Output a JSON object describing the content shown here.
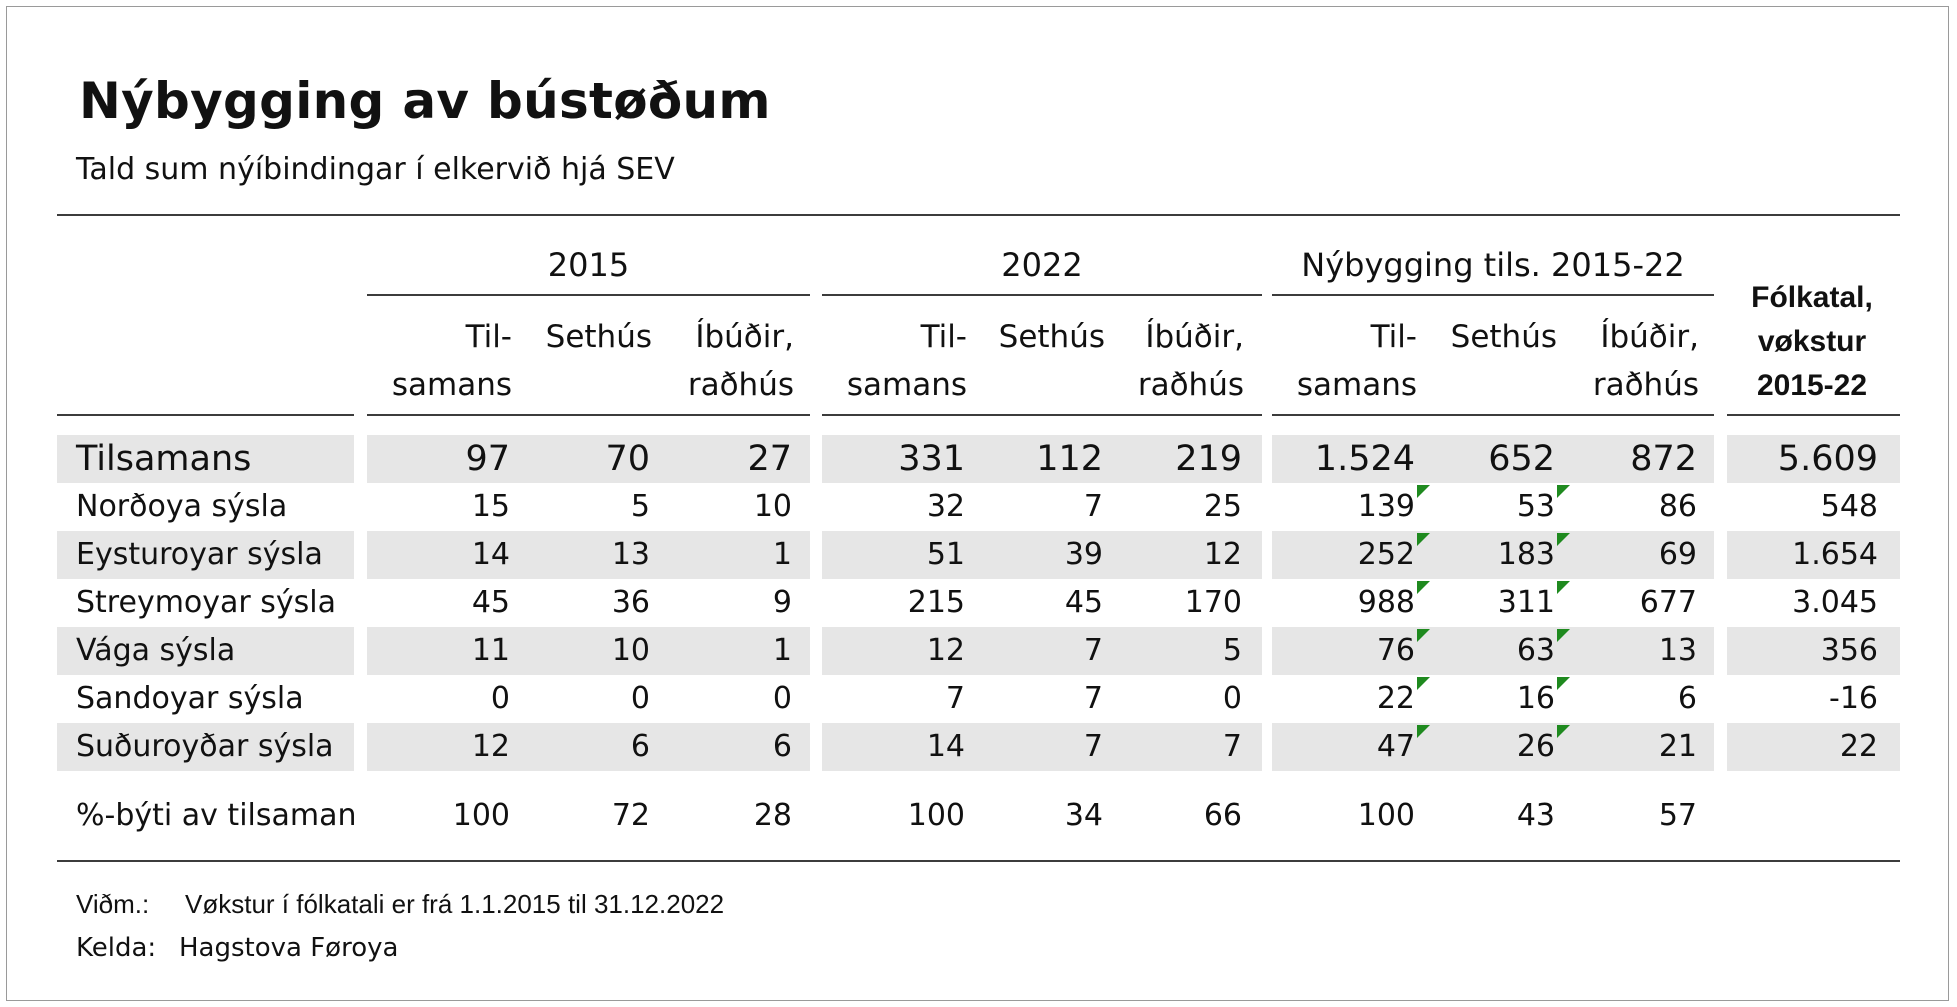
{
  "title": "Nýbygging av bústøðum",
  "subtitle": "Tald sum nýíbindingar í elkervið hjá SEV",
  "groups": [
    "2015",
    "2022",
    "Nýbygging tils. 2015-22"
  ],
  "col_headers": [
    {
      "l1": "Til-",
      "l2": "samans"
    },
    {
      "l1": "",
      "l2": "Sethús"
    },
    {
      "l1": "Íbúðir,",
      "l2": "raðhús"
    }
  ],
  "pop_header": [
    "Fólkatal,",
    "vøkstur",
    "2015-22"
  ],
  "rows": [
    {
      "label": "Tilsamans",
      "values": [
        "97",
        "70",
        "27",
        "331",
        "112",
        "219",
        "1.524",
        "652",
        "872",
        "5.609"
      ]
    },
    {
      "label": "Norðoya sýsla",
      "values": [
        "15",
        "5",
        "10",
        "32",
        "7",
        "25",
        "139",
        "53",
        "86",
        "548"
      ]
    },
    {
      "label": "Eysturoyar sýsla",
      "values": [
        "14",
        "13",
        "1",
        "51",
        "39",
        "12",
        "252",
        "183",
        "69",
        "1.654"
      ]
    },
    {
      "label": "Streymoyar sýsla",
      "values": [
        "45",
        "36",
        "9",
        "215",
        "45",
        "170",
        "988",
        "311",
        "677",
        "3.045"
      ]
    },
    {
      "label": "Vága sýsla",
      "values": [
        "11",
        "10",
        "1",
        "12",
        "7",
        "5",
        "76",
        "63",
        "13",
        "356"
      ]
    },
    {
      "label": "Sandoyar sýsla",
      "values": [
        "0",
        "0",
        "0",
        "7",
        "7",
        "0",
        "22",
        "16",
        "6",
        "-16"
      ]
    },
    {
      "label": "Suðuroyðar sýsla",
      "values": [
        "12",
        "6",
        "6",
        "14",
        "7",
        "7",
        "47",
        "26",
        "21",
        "22"
      ]
    }
  ],
  "pct_row": {
    "label": "%-býti av tilsaman",
    "values": [
      "100",
      "72",
      "28",
      "100",
      "34",
      "66",
      "100",
      "43",
      "57",
      ""
    ]
  },
  "notes": {
    "note_key": "Viðm.:",
    "note_text": "Vøkstur í fólkatali er frá 1.1.2015 til 31.12.2022",
    "source_key": "Kelda:",
    "source_text": "Hagstova Føroya"
  },
  "colors": {
    "band": "#e6e6e6",
    "rule": "#3c3c3c",
    "flag": "#1f8a1f"
  }
}
